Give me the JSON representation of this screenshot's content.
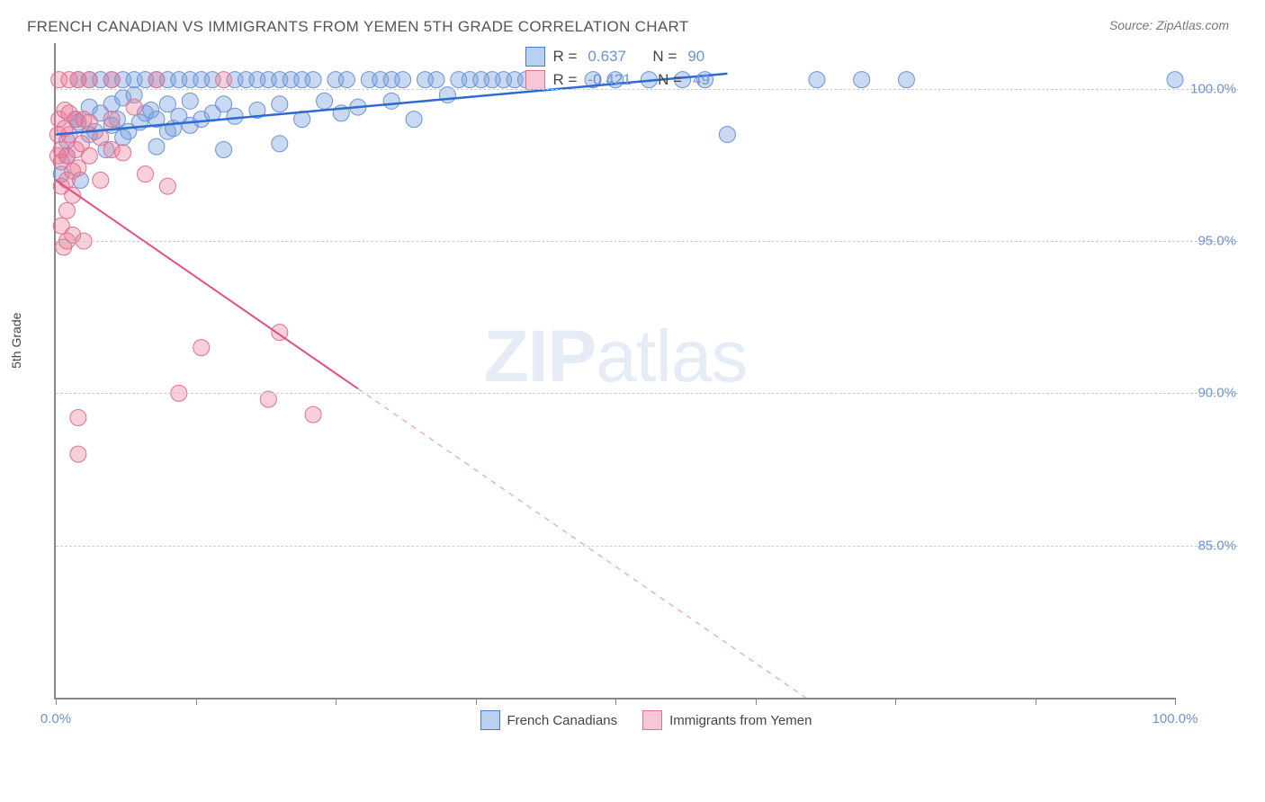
{
  "title": "FRENCH CANADIAN VS IMMIGRANTS FROM YEMEN 5TH GRADE CORRELATION CHART",
  "source_label": "Source: ",
  "source_name": "ZipAtlas.com",
  "y_axis_label": "5th Grade",
  "watermark_bold": "ZIP",
  "watermark_light": "atlas",
  "x_range": [
    0,
    100
  ],
  "y_range": [
    80,
    101.5
  ],
  "y_ticks": [
    85.0,
    90.0,
    95.0,
    100.0
  ],
  "y_tick_labels": [
    "85.0%",
    "90.0%",
    "95.0%",
    "100.0%"
  ],
  "x_ticks": [
    0,
    12.5,
    25,
    37.5,
    50,
    62.5,
    75,
    87.5,
    100
  ],
  "x_tick_labels": {
    "0": "0.0%",
    "100": "100.0%"
  },
  "series": [
    {
      "id": "french_canadians",
      "label": "French Canadians",
      "color_fill": "rgba(120,160,220,0.40)",
      "color_stroke": "#6b93d6",
      "swatch_fill": "#b9d0ef",
      "swatch_border": "#4a7bc8",
      "r_label": "R = ",
      "r_value": "0.637",
      "n_label": "N = ",
      "n_value": "90",
      "trend": {
        "x1": 0,
        "y1": 98.5,
        "x2": 60,
        "y2": 100.5,
        "solid_until_x": 60,
        "color": "#2d6bd0",
        "width": 2.5
      },
      "marker_radius": 9,
      "points": [
        [
          0.5,
          97.2
        ],
        [
          1,
          97.8
        ],
        [
          1,
          98.3
        ],
        [
          1.8,
          99.0
        ],
        [
          2,
          98.9
        ],
        [
          2,
          100.3
        ],
        [
          2.2,
          97.0
        ],
        [
          3,
          98.5
        ],
        [
          3,
          99.4
        ],
        [
          3,
          100.3
        ],
        [
          3.5,
          98.6
        ],
        [
          4,
          99.2
        ],
        [
          4,
          100.3
        ],
        [
          4.5,
          98.0
        ],
        [
          5,
          98.8
        ],
        [
          5,
          99.5
        ],
        [
          5,
          100.3
        ],
        [
          5.5,
          99.0
        ],
        [
          6,
          98.4
        ],
        [
          6,
          99.7
        ],
        [
          6,
          100.3
        ],
        [
          6.5,
          98.6
        ],
        [
          7,
          99.8
        ],
        [
          7,
          100.3
        ],
        [
          7.5,
          98.9
        ],
        [
          8,
          99.2
        ],
        [
          8,
          100.3
        ],
        [
          8.5,
          99.3
        ],
        [
          9,
          98.1
        ],
        [
          9,
          99.0
        ],
        [
          9,
          100.3
        ],
        [
          10,
          98.6
        ],
        [
          10,
          99.5
        ],
        [
          10,
          100.3
        ],
        [
          10.5,
          98.7
        ],
        [
          11,
          99.1
        ],
        [
          11,
          100.3
        ],
        [
          12,
          98.8
        ],
        [
          12,
          99.6
        ],
        [
          12,
          100.3
        ],
        [
          13,
          99.0
        ],
        [
          13,
          100.3
        ],
        [
          14,
          99.2
        ],
        [
          14,
          100.3
        ],
        [
          15,
          98.0
        ],
        [
          15,
          99.5
        ],
        [
          16,
          99.1
        ],
        [
          16,
          100.3
        ],
        [
          17,
          100.3
        ],
        [
          18,
          99.3
        ],
        [
          18,
          100.3
        ],
        [
          19,
          100.3
        ],
        [
          20,
          98.2
        ],
        [
          20,
          99.5
        ],
        [
          20,
          100.3
        ],
        [
          21,
          100.3
        ],
        [
          22,
          99.0
        ],
        [
          22,
          100.3
        ],
        [
          23,
          100.3
        ],
        [
          24,
          99.6
        ],
        [
          25,
          100.3
        ],
        [
          25.5,
          99.2
        ],
        [
          26,
          100.3
        ],
        [
          27,
          99.4
        ],
        [
          28,
          100.3
        ],
        [
          29,
          100.3
        ],
        [
          30,
          99.6
        ],
        [
          30,
          100.3
        ],
        [
          31,
          100.3
        ],
        [
          32,
          99.0
        ],
        [
          33,
          100.3
        ],
        [
          34,
          100.3
        ],
        [
          35,
          99.8
        ],
        [
          36,
          100.3
        ],
        [
          37,
          100.3
        ],
        [
          38,
          100.3
        ],
        [
          39,
          100.3
        ],
        [
          40,
          100.3
        ],
        [
          41,
          100.3
        ],
        [
          42,
          100.3
        ],
        [
          48,
          100.3
        ],
        [
          50,
          100.3
        ],
        [
          53,
          100.3
        ],
        [
          56,
          100.3
        ],
        [
          58,
          100.3
        ],
        [
          60,
          98.5
        ],
        [
          68,
          100.3
        ],
        [
          72,
          100.3
        ],
        [
          76,
          100.3
        ],
        [
          100,
          100.3
        ]
      ]
    },
    {
      "id": "immigrants_yemen",
      "label": "Immigrants from Yemen",
      "color_fill": "rgba(235,120,150,0.35)",
      "color_stroke": "#e36f92",
      "swatch_fill": "#f7c7d5",
      "swatch_border": "#e36f92",
      "r_label": "R = ",
      "r_value": "-0.421",
      "n_label": "N = ",
      "n_value": "49",
      "trend": {
        "x1": 0,
        "y1": 97.0,
        "x2": 67,
        "y2": 80.0,
        "solid_until_x": 27,
        "color": "#e0517e",
        "width": 2
      },
      "marker_radius": 9,
      "points": [
        [
          0.2,
          97.8
        ],
        [
          0.2,
          98.5
        ],
        [
          0.3,
          99.0
        ],
        [
          0.3,
          100.3
        ],
        [
          0.5,
          95.5
        ],
        [
          0.5,
          96.8
        ],
        [
          0.5,
          97.6
        ],
        [
          0.5,
          98.0
        ],
        [
          0.7,
          94.8
        ],
        [
          0.8,
          98.7
        ],
        [
          0.8,
          99.3
        ],
        [
          1.0,
          95.0
        ],
        [
          1.0,
          96.0
        ],
        [
          1.0,
          97.0
        ],
        [
          1.0,
          97.8
        ],
        [
          1.2,
          98.5
        ],
        [
          1.2,
          99.2
        ],
        [
          1.2,
          100.3
        ],
        [
          1.5,
          95.2
        ],
        [
          1.5,
          96.5
        ],
        [
          1.5,
          97.3
        ],
        [
          1.8,
          98.0
        ],
        [
          1.8,
          99.0
        ],
        [
          2.0,
          88.0
        ],
        [
          2.0,
          89.2
        ],
        [
          2.0,
          97.4
        ],
        [
          2.0,
          100.3
        ],
        [
          2.3,
          98.2
        ],
        [
          2.5,
          95.0
        ],
        [
          2.5,
          99.0
        ],
        [
          3.0,
          97.8
        ],
        [
          3.0,
          98.9
        ],
        [
          3.0,
          100.3
        ],
        [
          4.0,
          97.0
        ],
        [
          4.0,
          98.4
        ],
        [
          5.0,
          98.0
        ],
        [
          5.0,
          99.0
        ],
        [
          5.0,
          100.3
        ],
        [
          6.0,
          97.9
        ],
        [
          7.0,
          99.4
        ],
        [
          8.0,
          97.2
        ],
        [
          9.0,
          100.3
        ],
        [
          10.0,
          96.8
        ],
        [
          11.0,
          90.0
        ],
        [
          13.0,
          91.5
        ],
        [
          15.0,
          100.3
        ],
        [
          19.0,
          89.8
        ],
        [
          20.0,
          92.0
        ],
        [
          23.0,
          89.3
        ]
      ]
    }
  ]
}
